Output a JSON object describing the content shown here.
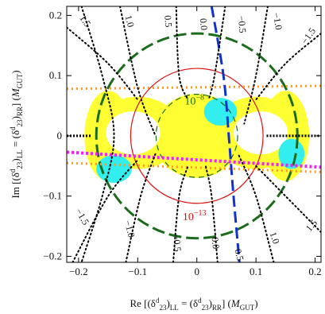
{
  "chart_data": {
    "type": "scatter",
    "xlabel": "Re [(δ^d_23)_LL = (δ^d_23)_RR] (M_GUT)",
    "ylabel": "Im [(δ^d_23)_LL = (δ^d_23)_RR] (M_GUT)",
    "xlim": [
      -0.22,
      0.21
    ],
    "ylim": [
      -0.21,
      0.215
    ],
    "x_ticks": [
      -0.2,
      -0.1,
      0,
      0.1,
      0.2
    ],
    "x_tick_labels": [
      "−0.2",
      "−0.1",
      "0",
      "0.1",
      "0.2"
    ],
    "y_ticks": [
      -0.2,
      -0.1,
      0,
      0.1,
      0.2
    ],
    "y_tick_labels": [
      "−0.2",
      "−0.1",
      "0",
      "0.1",
      "0.2"
    ],
    "colors": {
      "allowed_yellow": "#ffff33",
      "allowed_cyan": "#33eeee",
      "outer_circle": "#1a6b1a",
      "inner_circle": "#dd1111",
      "blue_line": "#1133cc",
      "orange_line": "#ff9922",
      "magenta_line": "#ee22ee",
      "black_contours": "#000000"
    },
    "circles": [
      {
        "name": "outer",
        "center": [
          0,
          0
        ],
        "radius": 0.17,
        "style": "long-dash",
        "color": "#1a6b1a"
      },
      {
        "name": "red",
        "center": [
          0,
          0
        ],
        "radius": 0.112,
        "style": "solid",
        "color": "#dd1111"
      },
      {
        "name": "inner",
        "center": [
          0,
          0
        ],
        "radius": 0.069,
        "style": "dash",
        "color": "#1a6b1a"
      }
    ],
    "blue_line": {
      "points": [
        [
          0.025,
          0.215
        ],
        [
          0.045,
          0.1
        ],
        [
          0.054,
          0
        ],
        [
          0.062,
          -0.1
        ],
        [
          0.072,
          -0.21
        ]
      ]
    },
    "orange_line": {
      "points": [
        [
          -0.22,
          0.078
        ],
        [
          0.21,
          0.083
        ]
      ],
      "points_low": [
        [
          -0.22,
          -0.045
        ],
        [
          0.21,
          -0.06
        ]
      ]
    },
    "magenta_line": {
      "points": [
        [
          -0.22,
          -0.027
        ],
        [
          0.21,
          -0.052
        ]
      ]
    },
    "black_segments": [
      {
        "points": [
          [
            -0.22,
            0.0
          ],
          [
            -0.178,
            0.0
          ]
        ]
      },
      {
        "points": [
          [
            0.118,
            0.0
          ],
          [
            0.21,
            0.0
          ]
        ]
      }
    ],
    "dotted_contours": [
      {
        "points": [
          [
            -0.195,
            0.215
          ],
          [
            -0.16,
            0.1
          ],
          [
            -0.14,
            0.0
          ],
          [
            -0.16,
            -0.1
          ],
          [
            -0.195,
            -0.21
          ]
        ]
      },
      {
        "points": [
          [
            -0.13,
            0.215
          ],
          [
            -0.1,
            0.08
          ],
          [
            -0.07,
            0.0
          ]
        ]
      },
      {
        "points": [
          [
            -0.035,
            0.215
          ],
          [
            -0.03,
            0.1
          ],
          [
            -0.015,
            0.06
          ]
        ]
      },
      {
        "points": [
          [
            0.048,
            0.215
          ],
          [
            0.03,
            0.1
          ],
          [
            0.02,
            0.06
          ]
        ]
      },
      {
        "points": [
          [
            0.12,
            0.215
          ],
          [
            0.1,
            0.1
          ],
          [
            0.08,
            0.02
          ]
        ]
      },
      {
        "points": [
          [
            0.21,
            0.17
          ],
          [
            0.15,
            0.12
          ],
          [
            0.1,
            0.06
          ]
        ]
      },
      {
        "points": [
          [
            -0.22,
            0.18
          ],
          [
            -0.15,
            0.12
          ],
          [
            -0.1,
            0.06
          ]
        ]
      },
      {
        "points": [
          [
            -0.21,
            -0.21
          ],
          [
            -0.15,
            -0.1
          ],
          [
            -0.1,
            -0.04
          ]
        ]
      },
      {
        "points": [
          [
            -0.12,
            -0.21
          ],
          [
            -0.095,
            -0.1
          ],
          [
            -0.07,
            -0.03
          ]
        ]
      },
      {
        "points": [
          [
            -0.04,
            -0.21
          ],
          [
            -0.03,
            -0.1
          ],
          [
            -0.015,
            -0.05
          ]
        ]
      },
      {
        "points": [
          [
            0.035,
            -0.21
          ],
          [
            0.025,
            -0.1
          ],
          [
            0.015,
            -0.05
          ]
        ]
      },
      {
        "points": [
          [
            0.13,
            -0.21
          ],
          [
            0.1,
            -0.1
          ],
          [
            0.07,
            -0.03
          ]
        ]
      },
      {
        "points": [
          [
            0.21,
            -0.16
          ],
          [
            0.15,
            -0.1
          ],
          [
            0.1,
            -0.05
          ]
        ]
      }
    ],
    "yellow_regions": [
      {
        "center": [
          -0.1,
          0.005
        ],
        "rx": 0.075,
        "ry": 0.06
      },
      {
        "center": [
          0.1,
          0.005
        ],
        "rx": 0.075,
        "ry": 0.06
      },
      {
        "center": [
          0.0,
          0.0
        ],
        "rx": 0.075,
        "ry": 0.07
      },
      {
        "center": [
          -0.15,
          0.0
        ],
        "rx": 0.04,
        "ry": 0.075
      },
      {
        "center": [
          0.15,
          0.0
        ],
        "rx": 0.04,
        "ry": 0.075
      }
    ],
    "yellow_holes": [
      {
        "center": [
          -0.108,
          0.005
        ],
        "rx": 0.045,
        "ry": 0.035
      },
      {
        "center": [
          0.108,
          0.005
        ],
        "rx": 0.045,
        "ry": 0.035
      }
    ],
    "cyan_regions": [
      {
        "center": [
          0.04,
          0.04
        ],
        "rx": 0.028,
        "ry": 0.023
      },
      {
        "center": [
          -0.14,
          -0.055
        ],
        "rx": 0.03,
        "ry": 0.023
      },
      {
        "center": [
          0.16,
          -0.03
        ],
        "rx": 0.022,
        "ry": 0.025
      }
    ],
    "annotations": [
      {
        "text": "10",
        "sup": "−8",
        "x": -0.004,
        "y": 0.052,
        "color": "#1a6b1a"
      },
      {
        "text": "10",
        "sup": "−13",
        "x": -0.004,
        "y": -0.14,
        "color": "#dd1111"
      }
    ],
    "contour_labels": [
      {
        "text": "1.5",
        "x": -0.19,
        "y": 0.19,
        "rot": 55
      },
      {
        "text": "1.0",
        "x": -0.115,
        "y": 0.19,
        "rot": 75
      },
      {
        "text": "0.5",
        "x": -0.05,
        "y": 0.19,
        "rot": 85
      },
      {
        "text": "0.0",
        "x": 0.01,
        "y": 0.185,
        "rot": 85
      },
      {
        "text": "−0.5",
        "x": 0.075,
        "y": 0.185,
        "rot": 85
      },
      {
        "text": "−1.0",
        "x": 0.135,
        "y": 0.19,
        "rot": 80
      },
      {
        "text": "−1.5",
        "x": 0.19,
        "y": 0.165,
        "rot": -55
      },
      {
        "text": "−1.5",
        "x": -0.195,
        "y": -0.135,
        "rot": 60
      },
      {
        "text": "−1.0",
        "x": -0.115,
        "y": -0.155,
        "rot": 75
      },
      {
        "text": "−0.5",
        "x": -0.035,
        "y": -0.178,
        "rot": 85
      },
      {
        "text": "0.0",
        "x": 0.03,
        "y": -0.178,
        "rot": 85
      },
      {
        "text": "0.5",
        "x": 0.07,
        "y": -0.198,
        "rot": 75
      },
      {
        "text": "1.0",
        "x": 0.13,
        "y": -0.17,
        "rot": 70
      },
      {
        "text": "1.5",
        "x": 0.195,
        "y": -0.15,
        "rot": -50
      }
    ],
    "grid": false,
    "legend": "none"
  }
}
